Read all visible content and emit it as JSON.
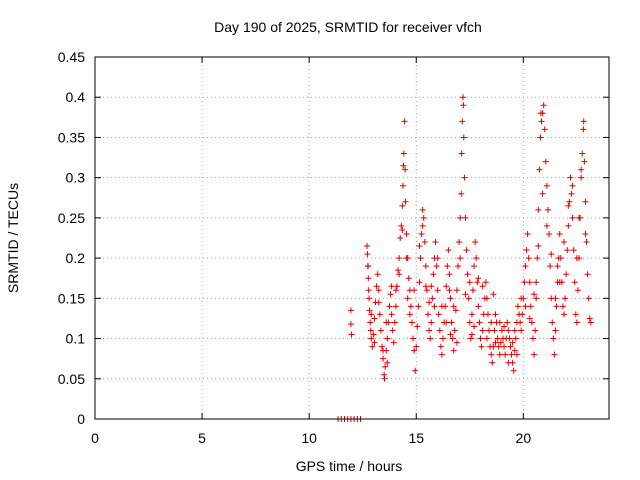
{
  "chart_data": {
    "type": "scatter",
    "title": "Day 190 of 2025, SRMTID for receiver vfch",
    "xlabel": "GPS time / hours",
    "ylabel": "SRMTID / TECUs",
    "xlim": [
      0,
      24
    ],
    "ylim": [
      0,
      0.45
    ],
    "xticks": [
      0,
      5,
      10,
      15,
      20
    ],
    "xtick_labels": [
      "0",
      "5",
      "10",
      "15",
      "20"
    ],
    "yticks": [
      0,
      0.05,
      0.1,
      0.15,
      0.2,
      0.25,
      0.3,
      0.35,
      0.4,
      0.45
    ],
    "ytick_labels": [
      "0",
      "0.05",
      "0.1",
      "0.15",
      "0.2",
      "0.25",
      "0.3",
      "0.35",
      "0.4",
      "0.45"
    ],
    "grid": true,
    "marker": "+",
    "series_color": "#e00000",
    "series": [
      {
        "name": "SRMTID",
        "points": [
          [
            11.35,
            0
          ],
          [
            11.5,
            0
          ],
          [
            11.65,
            0
          ],
          [
            11.8,
            0
          ],
          [
            11.95,
            0
          ],
          [
            12.1,
            0
          ],
          [
            12.25,
            0
          ],
          [
            12.4,
            0
          ],
          [
            11.95,
            0.135
          ],
          [
            11.95,
            0.118
          ],
          [
            11.98,
            0.105
          ],
          [
            12.7,
            0.215
          ],
          [
            12.72,
            0.205
          ],
          [
            12.74,
            0.19
          ],
          [
            12.76,
            0.175
          ],
          [
            12.78,
            0.16
          ],
          [
            12.8,
            0.15
          ],
          [
            12.82,
            0.135
          ],
          [
            12.85,
            0.12
          ],
          [
            12.88,
            0.11
          ],
          [
            12.9,
            0.1
          ],
          [
            12.95,
            0.09
          ],
          [
            13.0,
            0.105
          ],
          [
            13.05,
            0.125
          ],
          [
            13.1,
            0.145
          ],
          [
            13.15,
            0.165
          ],
          [
            13.2,
            0.18
          ],
          [
            13.25,
            0.16
          ],
          [
            13.3,
            0.13
          ],
          [
            13.35,
            0.11
          ],
          [
            13.4,
            0.09
          ],
          [
            13.45,
            0.075
          ],
          [
            13.5,
            0.055
          ],
          [
            13.52,
            0.05
          ],
          [
            13.55,
            0.065
          ],
          [
            13.6,
            0.085
          ],
          [
            13.65,
            0.1
          ],
          [
            13.7,
            0.12
          ],
          [
            13.75,
            0.14
          ],
          [
            13.8,
            0.155
          ],
          [
            13.85,
            0.13
          ],
          [
            13.9,
            0.11
          ],
          [
            13.95,
            0.095
          ],
          [
            14.0,
            0.12
          ],
          [
            14.05,
            0.14
          ],
          [
            14.1,
            0.165
          ],
          [
            14.15,
            0.185
          ],
          [
            14.2,
            0.2
          ],
          [
            14.25,
            0.225
          ],
          [
            14.3,
            0.24
          ],
          [
            14.35,
            0.265
          ],
          [
            14.38,
            0.29
          ],
          [
            14.4,
            0.315
          ],
          [
            14.42,
            0.33
          ],
          [
            14.45,
            0.37
          ],
          [
            14.48,
            0.31
          ],
          [
            14.5,
            0.27
          ],
          [
            14.55,
            0.23
          ],
          [
            14.6,
            0.2
          ],
          [
            14.65,
            0.175
          ],
          [
            14.7,
            0.16
          ],
          [
            14.75,
            0.14
          ],
          [
            14.8,
            0.12
          ],
          [
            14.85,
            0.1
          ],
          [
            14.9,
            0.085
          ],
          [
            14.95,
            0.06
          ],
          [
            15.0,
            0.09
          ],
          [
            15.05,
            0.115
          ],
          [
            15.1,
            0.14
          ],
          [
            15.15,
            0.17
          ],
          [
            15.2,
            0.2
          ],
          [
            15.25,
            0.23
          ],
          [
            15.3,
            0.26
          ],
          [
            15.35,
            0.25
          ],
          [
            15.4,
            0.22
          ],
          [
            15.45,
            0.19
          ],
          [
            15.5,
            0.16
          ],
          [
            15.55,
            0.13
          ],
          [
            15.6,
            0.11
          ],
          [
            15.65,
            0.1
          ],
          [
            15.7,
            0.12
          ],
          [
            15.75,
            0.15
          ],
          [
            15.8,
            0.18
          ],
          [
            15.85,
            0.2
          ],
          [
            15.9,
            0.22
          ],
          [
            15.95,
            0.19
          ],
          [
            16.0,
            0.16
          ],
          [
            16.05,
            0.13
          ],
          [
            16.1,
            0.11
          ],
          [
            16.15,
            0.09
          ],
          [
            16.2,
            0.08
          ],
          [
            16.25,
            0.1
          ],
          [
            16.3,
            0.12
          ],
          [
            16.35,
            0.14
          ],
          [
            16.4,
            0.165
          ],
          [
            16.45,
            0.19
          ],
          [
            16.5,
            0.21
          ],
          [
            16.55,
            0.18
          ],
          [
            16.6,
            0.15
          ],
          [
            16.65,
            0.12
          ],
          [
            16.7,
            0.1
          ],
          [
            16.75,
            0.085
          ],
          [
            16.8,
            0.11
          ],
          [
            16.85,
            0.135
          ],
          [
            16.9,
            0.16
          ],
          [
            16.95,
            0.19
          ],
          [
            17.0,
            0.22
          ],
          [
            17.05,
            0.25
          ],
          [
            17.1,
            0.28
          ],
          [
            17.12,
            0.33
          ],
          [
            17.15,
            0.37
          ],
          [
            17.18,
            0.4
          ],
          [
            17.2,
            0.39
          ],
          [
            17.22,
            0.35
          ],
          [
            17.25,
            0.3
          ],
          [
            17.3,
            0.25
          ],
          [
            17.35,
            0.21
          ],
          [
            17.4,
            0.18
          ],
          [
            17.45,
            0.15
          ],
          [
            17.5,
            0.12
          ],
          [
            17.55,
            0.1
          ],
          [
            17.6,
            0.13
          ],
          [
            17.65,
            0.16
          ],
          [
            17.7,
            0.19
          ],
          [
            17.75,
            0.22
          ],
          [
            17.8,
            0.2
          ],
          [
            17.85,
            0.17
          ],
          [
            17.9,
            0.14
          ],
          [
            17.95,
            0.12
          ],
          [
            18.0,
            0.1
          ],
          [
            18.05,
            0.09
          ],
          [
            18.1,
            0.11
          ],
          [
            18.15,
            0.13
          ],
          [
            18.2,
            0.15
          ],
          [
            18.25,
            0.17
          ],
          [
            18.3,
            0.15
          ],
          [
            18.35,
            0.13
          ],
          [
            18.4,
            0.11
          ],
          [
            18.45,
            0.09
          ],
          [
            18.5,
            0.08
          ],
          [
            18.55,
            0.07
          ],
          [
            18.6,
            0.09
          ],
          [
            18.65,
            0.11
          ],
          [
            18.7,
            0.13
          ],
          [
            18.75,
            0.12
          ],
          [
            18.8,
            0.1
          ],
          [
            18.85,
            0.09
          ],
          [
            18.9,
            0.08
          ],
          [
            18.95,
            0.095
          ],
          [
            19.0,
            0.11
          ],
          [
            19.05,
            0.1
          ],
          [
            19.1,
            0.09
          ],
          [
            19.15,
            0.08
          ],
          [
            19.2,
            0.1
          ],
          [
            19.25,
            0.12
          ],
          [
            19.3,
            0.11
          ],
          [
            19.35,
            0.1
          ],
          [
            19.4,
            0.09
          ],
          [
            19.45,
            0.08
          ],
          [
            19.5,
            0.07
          ],
          [
            19.55,
            0.06
          ],
          [
            19.6,
            0.085
          ],
          [
            19.65,
            0.1
          ],
          [
            19.7,
            0.12
          ],
          [
            19.75,
            0.14
          ],
          [
            19.8,
            0.13
          ],
          [
            19.85,
            0.12
          ],
          [
            19.9,
            0.11
          ],
          [
            19.95,
            0.13
          ],
          [
            20.0,
            0.15
          ],
          [
            20.05,
            0.17
          ],
          [
            20.1,
            0.19
          ],
          [
            20.15,
            0.21
          ],
          [
            20.2,
            0.23
          ],
          [
            20.25,
            0.2
          ],
          [
            20.3,
            0.17
          ],
          [
            20.35,
            0.14
          ],
          [
            20.4,
            0.12
          ],
          [
            20.45,
            0.1
          ],
          [
            20.5,
            0.08
          ],
          [
            20.55,
            0.11
          ],
          [
            20.6,
            0.15
          ],
          [
            20.65,
            0.2
          ],
          [
            20.7,
            0.26
          ],
          [
            20.75,
            0.31
          ],
          [
            20.8,
            0.35
          ],
          [
            20.82,
            0.38
          ],
          [
            20.85,
            0.37
          ],
          [
            20.9,
            0.38
          ],
          [
            20.95,
            0.39
          ],
          [
            21.0,
            0.36
          ],
          [
            21.05,
            0.32
          ],
          [
            21.1,
            0.29
          ],
          [
            21.15,
            0.26
          ],
          [
            21.2,
            0.23
          ],
          [
            21.25,
            0.19
          ],
          [
            21.3,
            0.15
          ],
          [
            21.35,
            0.12
          ],
          [
            21.4,
            0.1
          ],
          [
            21.45,
            0.08
          ],
          [
            21.5,
            0.11
          ],
          [
            21.55,
            0.14
          ],
          [
            21.6,
            0.17
          ],
          [
            21.65,
            0.2
          ],
          [
            21.7,
            0.23
          ],
          [
            21.75,
            0.2
          ],
          [
            21.8,
            0.17
          ],
          [
            21.85,
            0.14
          ],
          [
            21.9,
            0.13
          ],
          [
            21.95,
            0.15
          ],
          [
            22.0,
            0.18
          ],
          [
            22.05,
            0.21
          ],
          [
            22.1,
            0.24
          ],
          [
            22.15,
            0.27
          ],
          [
            22.2,
            0.3
          ],
          [
            22.25,
            0.28
          ],
          [
            22.3,
            0.25
          ],
          [
            22.35,
            0.21
          ],
          [
            22.4,
            0.17
          ],
          [
            22.45,
            0.13
          ],
          [
            22.5,
            0.12
          ],
          [
            22.55,
            0.16
          ],
          [
            22.6,
            0.2
          ],
          [
            22.65,
            0.25
          ],
          [
            22.7,
            0.3
          ],
          [
            22.75,
            0.33
          ],
          [
            22.8,
            0.36
          ],
          [
            22.82,
            0.37
          ],
          [
            22.85,
            0.32
          ],
          [
            22.9,
            0.27
          ],
          [
            22.95,
            0.22
          ],
          [
            23.0,
            0.18
          ],
          [
            23.05,
            0.15
          ],
          [
            23.1,
            0.125
          ],
          [
            23.15,
            0.12
          ],
          [
            12.75,
            0.19
          ],
          [
            12.9,
            0.13
          ],
          [
            13.05,
            0.095
          ],
          [
            13.25,
            0.145
          ],
          [
            13.45,
            0.085
          ],
          [
            13.65,
            0.07
          ],
          [
            13.85,
            0.165
          ],
          [
            14.05,
            0.16
          ],
          [
            14.2,
            0.18
          ],
          [
            14.35,
            0.235
          ],
          [
            14.55,
            0.2
          ],
          [
            14.7,
            0.13
          ],
          [
            14.9,
            0.16
          ],
          [
            15.15,
            0.215
          ],
          [
            15.3,
            0.24
          ],
          [
            15.45,
            0.165
          ],
          [
            15.7,
            0.165
          ],
          [
            15.85,
            0.14
          ],
          [
            16.0,
            0.2
          ],
          [
            16.2,
            0.14
          ],
          [
            16.4,
            0.12
          ],
          [
            16.55,
            0.16
          ],
          [
            16.75,
            0.14
          ],
          [
            16.9,
            0.095
          ],
          [
            17.05,
            0.2
          ],
          [
            17.3,
            0.155
          ],
          [
            17.5,
            0.17
          ],
          [
            17.7,
            0.115
          ],
          [
            17.9,
            0.175
          ],
          [
            18.1,
            0.165
          ],
          [
            18.3,
            0.1
          ],
          [
            18.5,
            0.12
          ],
          [
            18.7,
            0.095
          ],
          [
            18.9,
            0.12
          ],
          [
            19.1,
            0.115
          ],
          [
            19.3,
            0.07
          ],
          [
            19.5,
            0.095
          ],
          [
            19.7,
            0.08
          ],
          [
            19.9,
            0.15
          ],
          [
            20.1,
            0.14
          ],
          [
            20.3,
            0.125
          ],
          [
            20.5,
            0.155
          ],
          [
            20.7,
            0.215
          ],
          [
            20.9,
            0.28
          ],
          [
            21.1,
            0.24
          ],
          [
            21.3,
            0.205
          ],
          [
            21.5,
            0.15
          ],
          [
            21.7,
            0.17
          ],
          [
            21.9,
            0.22
          ],
          [
            22.1,
            0.265
          ],
          [
            22.3,
            0.29
          ],
          [
            22.5,
            0.2
          ],
          [
            22.7,
            0.31
          ],
          [
            22.9,
            0.23
          ],
          [
            13.6,
            0.12
          ],
          [
            14.6,
            0.15
          ],
          [
            15.6,
            0.145
          ],
          [
            16.6,
            0.105
          ],
          [
            17.6,
            0.105
          ],
          [
            18.6,
            0.155
          ],
          [
            19.6,
            0.11
          ],
          [
            20.6,
            0.17
          ],
          [
            21.6,
            0.19
          ],
          [
            22.6,
            0.25
          ]
        ]
      }
    ]
  }
}
